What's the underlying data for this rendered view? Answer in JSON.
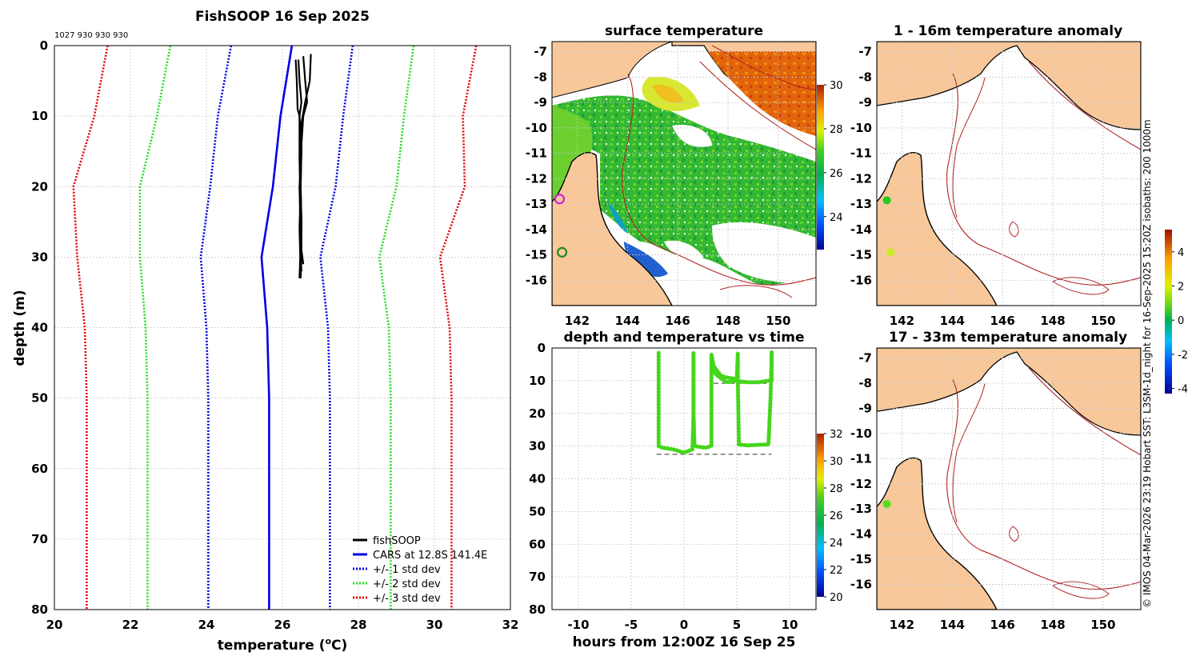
{
  "colors": {
    "land": "#f8c89a",
    "coast": "#000000",
    "isobath": "#b22222",
    "cars": "#0000e6",
    "std1": "#0000e6",
    "std2": "#22dd22",
    "std3": "#e60000",
    "fishsoop": "#000000",
    "track": "#44d61a",
    "grid": "#c8c8c8"
  },
  "chart_data": [
    {
      "type": "line",
      "name": "profile",
      "title": "FishSOOP 16 Sep 2025",
      "subtitle": "1027 930 930 930",
      "xlabel": "temperature (",
      "xlabel_sup": "o",
      "xlabel_tail": "C)",
      "ylabel": "depth (m)",
      "xlim": [
        20,
        32
      ],
      "ylim": [
        0,
        80
      ],
      "y_reversed": true,
      "xticks": [
        20,
        22,
        24,
        26,
        28,
        30,
        32
      ],
      "yticks": [
        0,
        10,
        20,
        30,
        40,
        50,
        60,
        70,
        80
      ],
      "depth": [
        0,
        10,
        20,
        30,
        40,
        50,
        60,
        70,
        80
      ],
      "series": [
        {
          "name": "CARS at 12.8S 141.4E",
          "style": "solid",
          "color": "#0000e6",
          "values": [
            26.25,
            25.95,
            25.75,
            25.45,
            25.6,
            25.65,
            25.65,
            25.65,
            25.65
          ]
        },
        {
          "name": "+/- 1 std dev",
          "style": "dotted",
          "color": "#0000e6",
          "upper": [
            27.85,
            27.6,
            27.4,
            27.0,
            27.2,
            27.25,
            27.25,
            27.25,
            27.25
          ],
          "lower": [
            24.65,
            24.3,
            24.1,
            23.85,
            24.0,
            24.05,
            24.05,
            24.05,
            24.05
          ]
        },
        {
          "name": "+/- 2 std dev",
          "style": "dotted",
          "color": "#22dd22",
          "upper": [
            29.45,
            29.2,
            29.0,
            28.55,
            28.8,
            28.85,
            28.85,
            28.85,
            28.85
          ],
          "lower": [
            23.05,
            22.7,
            22.25,
            22.25,
            22.4,
            22.45,
            22.45,
            22.45,
            22.45
          ]
        },
        {
          "name": "+/- 3 std dev",
          "style": "dotted",
          "color": "#e60000",
          "upper": [
            31.1,
            30.75,
            30.8,
            30.15,
            30.4,
            30.45,
            30.45,
            30.45,
            30.45
          ],
          "lower": [
            21.4,
            21.05,
            20.5,
            20.6,
            20.8,
            20.85,
            20.85,
            20.85,
            20.85
          ]
        }
      ],
      "fishsoop": {
        "name": "fishSOOP",
        "casts": [
          {
            "temp": [
              26.42,
              26.45,
              26.5,
              26.45,
              26.5,
              26.45,
              26.47,
              26.5,
              26.48
            ],
            "depth": [
              2,
              5,
              8,
              10,
              15,
              20,
              25,
              30,
              33
            ]
          },
          {
            "temp": [
              26.55,
              26.6,
              26.65,
              26.55,
              26.5,
              26.48,
              26.5,
              26.48,
              26.5
            ],
            "depth": [
              1.5,
              5,
              8,
              10,
              14,
              20,
              25,
              30,
              32
            ]
          },
          {
            "temp": [
              26.75,
              26.72,
              26.6,
              26.5,
              26.5,
              26.48,
              26.5,
              26.5,
              26.55
            ],
            "depth": [
              1.2,
              5,
              8,
              11,
              15,
              20,
              25,
              29,
              31
            ]
          },
          {
            "temp": [
              26.35,
              26.38,
              26.4,
              26.45,
              26.45,
              26.47,
              26.45,
              26.47,
              26.45
            ],
            "depth": [
              2,
              5,
              9,
              10,
              16,
              22,
              26,
              30,
              33
            ]
          }
        ]
      },
      "legend": [
        "fishSOOP",
        "CARS at 12.8S 141.4E",
        "+/- 1 std dev",
        "+/- 2 std dev",
        "+/- 3 std dev"
      ],
      "legend_position": "bottom-right"
    },
    {
      "type": "heatmap",
      "name": "surface-temperature-map",
      "title": "surface temperature",
      "xlim": [
        141,
        151.5
      ],
      "ylim": [
        -17,
        -6.6
      ],
      "xticks": [
        142,
        144,
        146,
        148,
        150
      ],
      "yticks": [
        -7,
        -8,
        -9,
        -10,
        -11,
        -12,
        -13,
        -14,
        -15,
        -16
      ],
      "colorbar": {
        "min": 22.5,
        "max": 30,
        "ticks": [
          24,
          26,
          28,
          30
        ]
      },
      "markers": [
        {
          "lon": 141.3,
          "lat": -12.8,
          "color": "#d41fd4",
          "ring": true
        },
        {
          "lon": 141.4,
          "lat": -14.9,
          "color": "#228b22",
          "ring": true
        }
      ]
    },
    {
      "type": "scatter",
      "name": "depth-time",
      "title": "depth and temperature vs time",
      "xlabel": "hours from 12:00Z 16 Sep 25",
      "xlim": [
        -12.5,
        12.5
      ],
      "ylim": [
        0,
        80
      ],
      "y_reversed": true,
      "xticks": [
        -10,
        -5,
        0,
        5,
        10
      ],
      "yticks": [
        0,
        10,
        20,
        30,
        40,
        50,
        60,
        70,
        80
      ],
      "track": {
        "hours": [
          -2.4,
          -2.4,
          -2.4,
          -2.0,
          -1.0,
          0.0,
          0.8,
          0.9,
          0.9,
          0.9,
          1.0,
          2.0,
          2.6,
          2.6,
          2.8,
          3.5,
          4.0,
          5.0,
          5.1,
          5.1,
          5.2,
          6.0,
          7.0,
          8.0,
          8.2,
          8.3,
          8.3,
          8.3,
          8.0,
          7.0,
          6.0,
          5.3,
          5.0,
          4.0,
          3.0,
          2.9,
          2.8,
          2.7
        ],
        "depth": [
          1.5,
          15,
          30,
          30.5,
          31,
          32,
          31,
          20,
          1.5,
          20,
          30,
          30.5,
          30,
          1.8,
          5.5,
          8.5,
          9,
          9.5,
          1.5,
          10,
          29.5,
          29.8,
          29.6,
          29.5,
          15,
          1.2,
          6,
          10,
          10,
          10.5,
          10.5,
          10.2,
          10,
          10.5,
          8,
          7,
          6.5,
          6
        ]
      },
      "dashed_lines": [
        {
          "depth": 10.8,
          "from": 2.8,
          "to": 8.3
        },
        {
          "depth": 32.5,
          "from": -2.6,
          "to": 8.3
        }
      ],
      "colorbar": {
        "min": 20,
        "max": 32,
        "ticks": [
          20,
          22,
          24,
          26,
          28,
          30,
          32
        ]
      }
    },
    {
      "type": "heatmap",
      "name": "anomaly-1-16m",
      "title": "1 - 16m temperature anomaly",
      "xlim": [
        141,
        151.5
      ],
      "ylim": [
        -17,
        -6.6
      ],
      "xticks": [
        142,
        144,
        146,
        148,
        150
      ],
      "yticks": [
        -7,
        -8,
        -9,
        -10,
        -11,
        -12,
        -13,
        -14,
        -15,
        -16
      ],
      "markers": [
        {
          "lon": 141.4,
          "lat": -12.85,
          "color": "#22cc22"
        },
        {
          "lon": 141.55,
          "lat": -14.9,
          "color": "#c8ee22"
        }
      ]
    },
    {
      "type": "heatmap",
      "name": "anomaly-17-33m",
      "title": "17 - 33m temperature anomaly",
      "xlim": [
        141,
        151.5
      ],
      "ylim": [
        -17,
        -6.6
      ],
      "xticks": [
        142,
        144,
        146,
        148,
        150
      ],
      "yticks": [
        -7,
        -8,
        -9,
        -10,
        -11,
        -12,
        -13,
        -14,
        -15,
        -16
      ],
      "colorbar": {
        "min": -4.3,
        "max": 5.3,
        "ticks": [
          4,
          2,
          0,
          -2,
          -4
        ]
      },
      "markers": [
        {
          "lon": 141.4,
          "lat": -12.8,
          "color": "#55dd22"
        }
      ]
    }
  ],
  "credit": "© IMOS 04-Mar-2026 23:19 Hobart SST: L3SM-1d_night for 16-Sep-2025 15:20Z isobaths: 200  1000m"
}
